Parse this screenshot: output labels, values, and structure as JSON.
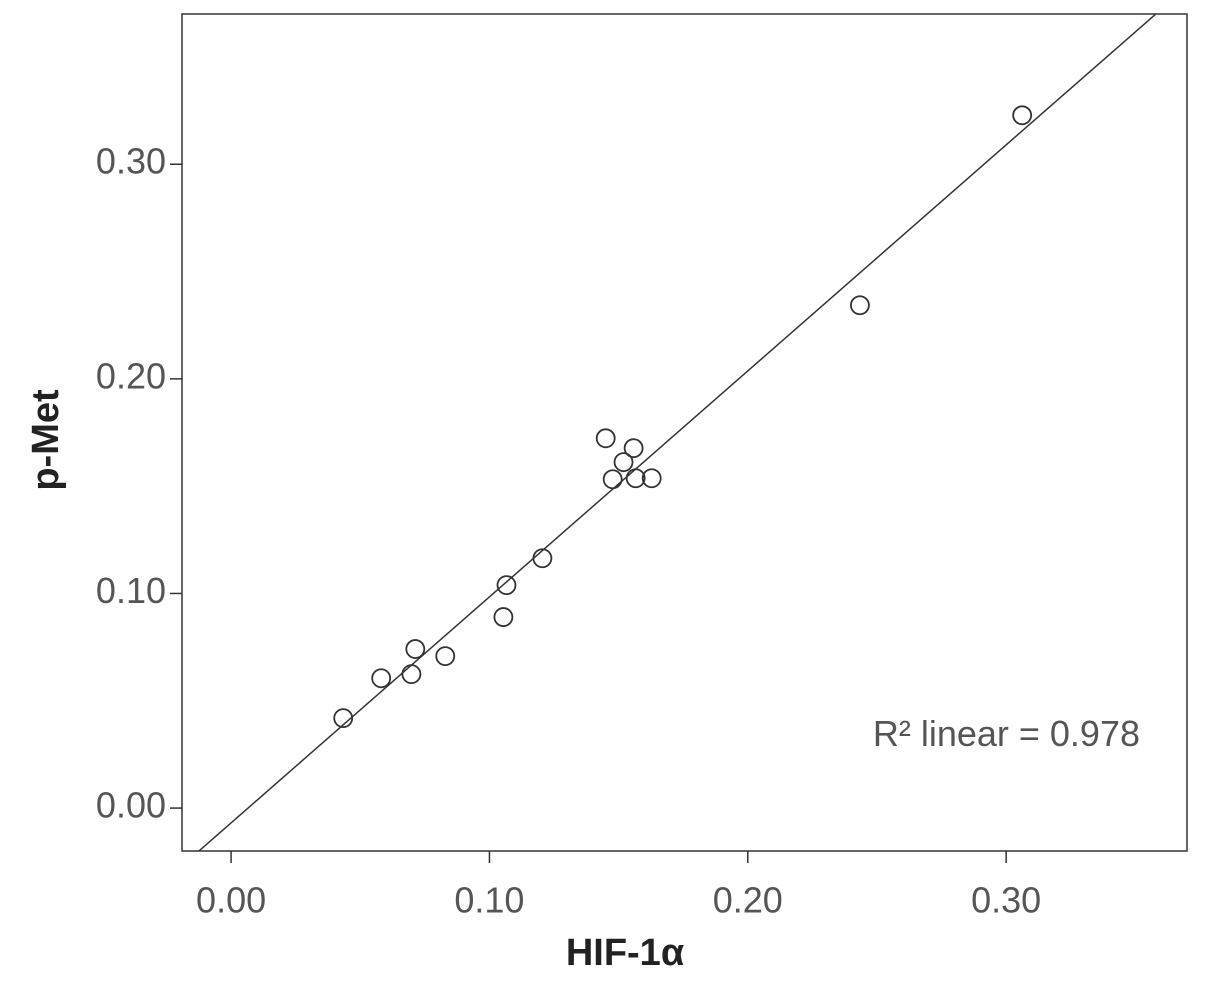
{
  "chart_data": {
    "type": "scatter",
    "x_label": "HIF-1α",
    "y_label": "p-Met",
    "annotation": "R² linear = 0.978",
    "x": [
      0.0434,
      0.0581,
      0.0698,
      0.0713,
      0.0829,
      0.1054,
      0.1066,
      0.1205,
      0.145,
      0.1477,
      0.1519,
      0.1558,
      0.1566,
      0.1628,
      0.2434,
      0.3062
    ],
    "values": [
      0.0419,
      0.0605,
      0.0624,
      0.0741,
      0.0708,
      0.089,
      0.1039,
      0.1164,
      0.1723,
      0.1532,
      0.1612,
      0.1677,
      0.1537,
      0.1537,
      0.2343,
      0.3228
    ],
    "color": "#333333",
    "trendline": {
      "slope": 1.053,
      "intercept": -0.0069
    },
    "xlim": [
      -0.019,
      0.37
    ],
    "ylim": [
      -0.02,
      0.37
    ],
    "xticks": [
      {
        "value": 0,
        "label": "0.00"
      },
      {
        "value": 0.1,
        "label": "0.10"
      },
      {
        "value": 0.2,
        "label": "0.20"
      },
      {
        "value": 0.3,
        "label": "0.30"
      }
    ],
    "yticks": [
      {
        "value": 0,
        "label": "0.00"
      },
      {
        "value": 0.1,
        "label": "0.10"
      },
      {
        "value": 0.2,
        "label": "0.20"
      },
      {
        "value": 0.3,
        "label": "0.30"
      }
    ]
  }
}
